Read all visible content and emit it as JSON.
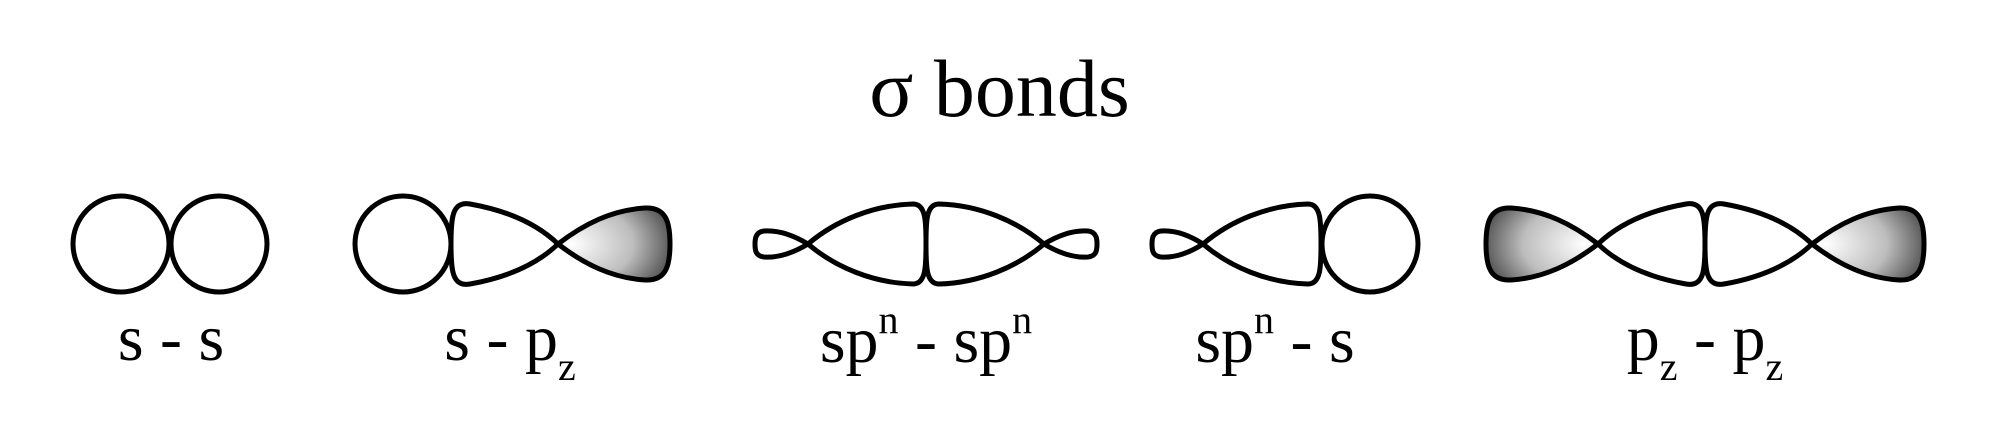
{
  "title": "σ bonds",
  "colors": {
    "stroke": "#000000",
    "fill": "#ffffff",
    "shade_light": "#ffffff",
    "shade_dark": "#3a3a3a"
  },
  "bonds": [
    {
      "id": "s-s",
      "label": {
        "a": "s",
        "sep": " - ",
        "b": "s"
      }
    },
    {
      "id": "s-pz",
      "label": {
        "a": "s",
        "sep": " - ",
        "b": "p",
        "b_sub": "z"
      }
    },
    {
      "id": "spn-spn",
      "label": {
        "a": "sp",
        "a_sup": "n",
        "sep": " - ",
        "b": "sp",
        "b_sup": "n"
      }
    },
    {
      "id": "spn-s",
      "label": {
        "a": "sp",
        "a_sup": "n",
        "sep": " - ",
        "b": "s"
      }
    },
    {
      "id": "pz-pz",
      "label": {
        "a": "p",
        "a_sub": "z",
        "sep": " - ",
        "b": "p",
        "b_sub": "z"
      }
    }
  ]
}
